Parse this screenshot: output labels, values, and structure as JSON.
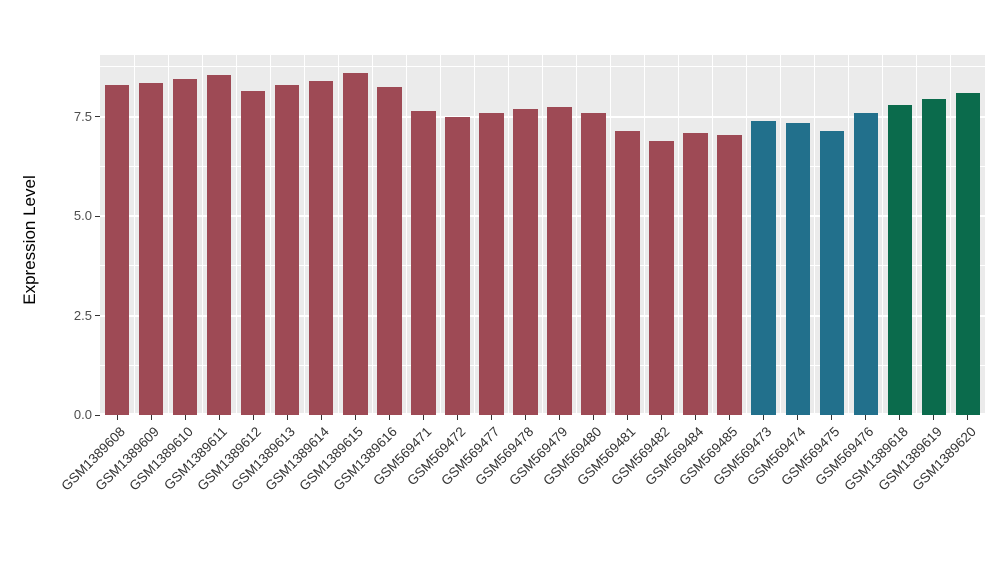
{
  "chart_data": {
    "type": "bar",
    "title": "",
    "xlabel": "",
    "ylabel": "Expression Level",
    "ylim": [
      0,
      9.05
    ],
    "yticks": [
      "0.0",
      "2.5",
      "5.0",
      "7.5"
    ],
    "ytick_values": [
      0,
      2.5,
      5.0,
      7.5
    ],
    "ytick_minor": [
      1.25,
      3.75,
      6.25,
      8.75
    ],
    "grid": true,
    "legend": "none",
    "categories": [
      "GSM1389608",
      "GSM1389609",
      "GSM1389610",
      "GSM1389611",
      "GSM1389612",
      "GSM1389613",
      "GSM1389614",
      "GSM1389615",
      "GSM1389616",
      "GSM569471",
      "GSM569472",
      "GSM569477",
      "GSM569478",
      "GSM569479",
      "GSM569480",
      "GSM569481",
      "GSM569482",
      "GSM569484",
      "GSM569485",
      "GSM569473",
      "GSM569474",
      "GSM569475",
      "GSM569476",
      "GSM1389618",
      "GSM1389619",
      "GSM1389620"
    ],
    "values": [
      8.3,
      8.35,
      8.45,
      8.55,
      8.15,
      8.3,
      8.4,
      8.6,
      8.25,
      7.65,
      7.5,
      7.6,
      7.7,
      7.75,
      7.6,
      7.15,
      6.9,
      7.1,
      7.05,
      7.4,
      7.35,
      7.15,
      7.6,
      7.8,
      7.95,
      8.1
    ],
    "bar_groups": [
      "maroon",
      "maroon",
      "maroon",
      "maroon",
      "maroon",
      "maroon",
      "maroon",
      "maroon",
      "maroon",
      "maroon",
      "maroon",
      "maroon",
      "maroon",
      "maroon",
      "maroon",
      "maroon",
      "maroon",
      "maroon",
      "maroon",
      "teal",
      "teal",
      "teal",
      "teal",
      "green",
      "green",
      "green"
    ],
    "palette": {
      "maroon": "#9E4A55",
      "teal": "#22708C",
      "green": "#0B6B4C"
    },
    "style": {
      "panel_background": "#EBEBEB",
      "grid_color": "#FFFFFF",
      "tick_color": "#333333",
      "axis_text_color": "#4d4d4d"
    }
  }
}
